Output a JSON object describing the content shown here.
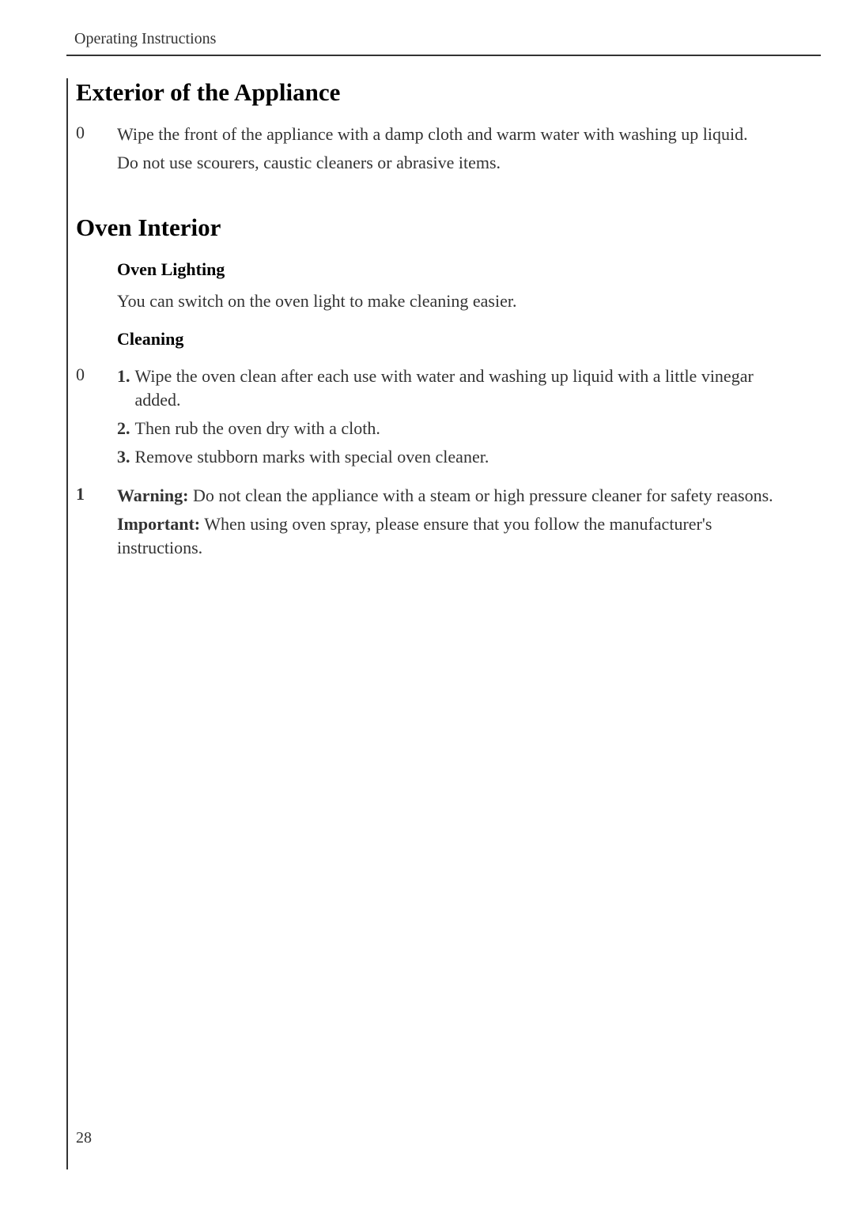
{
  "header": "Operating Instructions",
  "section1": {
    "title": "Exterior of the Appliance",
    "marker": "0",
    "text1": "Wipe the front of the appliance with a damp cloth and warm water with washing up liquid.",
    "text2": "Do not use scourers, caustic cleaners or abrasive items."
  },
  "section2": {
    "title": "Oven Interior",
    "sub1_heading": "Oven Lighting",
    "sub1_text": "You can switch on the oven light to make cleaning easier.",
    "sub2_heading": "Cleaning",
    "sub2_marker": "0",
    "items": [
      {
        "num": "1.",
        "text": "Wipe the oven clean after each use with water and washing up liquid with a little vinegar added."
      },
      {
        "num": "2.",
        "text": "Then rub the oven dry with a cloth."
      },
      {
        "num": "3.",
        "text": "Remove stubborn marks with special oven cleaner."
      }
    ],
    "warn_marker": "1",
    "warning_label": "Warning:",
    "warning_text": " Do not clean the appliance with a steam or high pressure cleaner for safety reasons.",
    "important_label": "Important:",
    "important_text": " When using oven spray, please ensure that you follow the manufacturer's instructions."
  },
  "page_number": "28",
  "colors": {
    "text": "#333333",
    "heading": "#000000",
    "background": "#ffffff",
    "rule": "#333333"
  },
  "typography": {
    "header_size": 20,
    "section_title_size": 31,
    "body_size": 22,
    "line_height": 1.35
  }
}
